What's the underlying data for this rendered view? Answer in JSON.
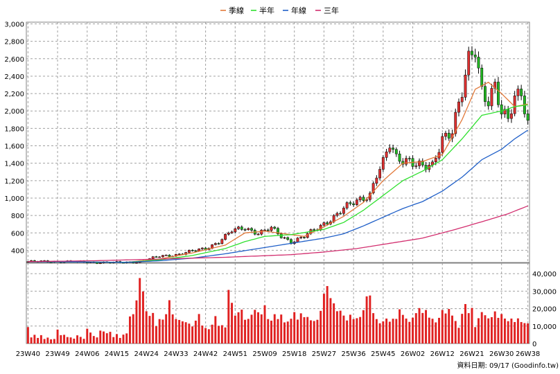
{
  "chart_data": {
    "type": "candlestick",
    "period": "weekly",
    "legend": [
      {
        "label": "季線",
        "color": "#e2793a"
      },
      {
        "label": "半年",
        "color": "#2ee02e"
      },
      {
        "label": "年線",
        "color": "#1f5fc8"
      },
      {
        "label": "三年",
        "color": "#d22d6e"
      }
    ],
    "legend_position": "top-center",
    "grid": true,
    "colors": {
      "up": "#e03030",
      "down": "#22b822",
      "volume": "#e02020"
    },
    "price_axis": {
      "ticks": [
        400,
        600,
        800,
        1000,
        1200,
        1400,
        1600,
        1800,
        2000,
        2200,
        2400,
        2600,
        2800,
        3000
      ],
      "tick_labels": [
        "400",
        "600",
        "800",
        "1,000",
        "1,200",
        "1,400",
        "1,600",
        "1,800",
        "2,000",
        "2,200",
        "2,400",
        "2,600",
        "2,800",
        "3,000"
      ],
      "ylim": [
        260,
        3020
      ]
    },
    "volume_axis": {
      "ticks": [
        0,
        10000,
        20000,
        30000,
        40000
      ],
      "tick_labels": [
        "0",
        "10,000",
        "20,000",
        "30,000",
        "40,000"
      ],
      "ylim": [
        0,
        46000
      ],
      "position": "right"
    },
    "x_tick_labels": [
      "23W40",
      "23W49",
      "24W06",
      "24W15",
      "24W24",
      "24W33",
      "24W42",
      "24W51",
      "25W09",
      "25W18",
      "25W27",
      "25W36",
      "25W45",
      "26W02",
      "26W12",
      "26W21",
      "26W30",
      "26W38"
    ],
    "x_tick_positions": [
      0,
      9,
      18,
      27,
      36,
      45,
      54,
      63,
      72,
      81,
      90,
      99,
      108,
      117,
      126,
      135,
      144,
      152
    ],
    "footer": "資料日期: 09/17  (Goodinfo.tw)",
    "weeks": 153,
    "price_anchors": [
      [
        0,
        270
      ],
      [
        10,
        272
      ],
      [
        20,
        262
      ],
      [
        27,
        258
      ],
      [
        30,
        262
      ],
      [
        34,
        270
      ],
      [
        36,
        290
      ],
      [
        40,
        330
      ],
      [
        45,
        350
      ],
      [
        50,
        390
      ],
      [
        54,
        420
      ],
      [
        58,
        500
      ],
      [
        62,
        620
      ],
      [
        66,
        660
      ],
      [
        70,
        600
      ],
      [
        74,
        650
      ],
      [
        77,
        560
      ],
      [
        80,
        500
      ],
      [
        84,
        560
      ],
      [
        88,
        650
      ],
      [
        92,
        760
      ],
      [
        96,
        880
      ],
      [
        100,
        960
      ],
      [
        104,
        1050
      ],
      [
        106,
        1280
      ],
      [
        108,
        1400
      ],
      [
        110,
        1600
      ],
      [
        112,
        1450
      ],
      [
        116,
        1450
      ],
      [
        120,
        1350
      ],
      [
        123,
        1350
      ],
      [
        126,
        1700
      ],
      [
        129,
        1800
      ],
      [
        132,
        2200
      ],
      [
        134,
        2550
      ],
      [
        136,
        2700
      ],
      [
        138,
        2250
      ],
      [
        140,
        2150
      ],
      [
        142,
        2300
      ],
      [
        144,
        1950
      ],
      [
        146,
        1880
      ],
      [
        148,
        2150
      ],
      [
        150,
        2250
      ],
      [
        152,
        1880
      ]
    ],
    "ma_anchors": {
      "season": [
        [
          0,
          270
        ],
        [
          30,
          262
        ],
        [
          40,
          300
        ],
        [
          50,
          370
        ],
        [
          60,
          460
        ],
        [
          66,
          600
        ],
        [
          72,
          620
        ],
        [
          78,
          590
        ],
        [
          84,
          560
        ],
        [
          90,
          670
        ],
        [
          96,
          790
        ],
        [
          102,
          950
        ],
        [
          108,
          1200
        ],
        [
          114,
          1400
        ],
        [
          120,
          1420
        ],
        [
          126,
          1500
        ],
        [
          132,
          1900
        ],
        [
          136,
          2250
        ],
        [
          140,
          2330
        ],
        [
          144,
          2200
        ],
        [
          148,
          2050
        ],
        [
          152,
          2080
        ]
      ],
      "half_year": [
        [
          0,
          270
        ],
        [
          30,
          262
        ],
        [
          40,
          290
        ],
        [
          50,
          340
        ],
        [
          60,
          420
        ],
        [
          66,
          500
        ],
        [
          72,
          560
        ],
        [
          80,
          580
        ],
        [
          90,
          640
        ],
        [
          96,
          720
        ],
        [
          102,
          860
        ],
        [
          108,
          1030
        ],
        [
          114,
          1200
        ],
        [
          120,
          1310
        ],
        [
          126,
          1440
        ],
        [
          132,
          1680
        ],
        [
          138,
          1950
        ],
        [
          144,
          2000
        ],
        [
          148,
          2050
        ],
        [
          152,
          2070
        ]
      ],
      "year": [
        [
          0,
          270
        ],
        [
          30,
          262
        ],
        [
          40,
          280
        ],
        [
          50,
          310
        ],
        [
          60,
          360
        ],
        [
          70,
          420
        ],
        [
          80,
          480
        ],
        [
          90,
          540
        ],
        [
          96,
          590
        ],
        [
          102,
          680
        ],
        [
          108,
          780
        ],
        [
          114,
          880
        ],
        [
          120,
          960
        ],
        [
          126,
          1080
        ],
        [
          132,
          1240
        ],
        [
          138,
          1440
        ],
        [
          144,
          1560
        ],
        [
          148,
          1680
        ],
        [
          152,
          1780
        ]
      ],
      "three_year": [
        [
          0,
          270
        ],
        [
          20,
          280
        ],
        [
          40,
          300
        ],
        [
          60,
          320
        ],
        [
          80,
          350
        ],
        [
          90,
          380
        ],
        [
          100,
          420
        ],
        [
          110,
          480
        ],
        [
          120,
          540
        ],
        [
          130,
          640
        ],
        [
          140,
          750
        ],
        [
          146,
          820
        ],
        [
          152,
          910
        ]
      ]
    },
    "volume": [
      9400,
      3500,
      5000,
      3200,
      4800,
      2600,
      3400,
      2400,
      2600,
      8000,
      4800,
      5000,
      3700,
      3500,
      2800,
      4700,
      3800,
      2700,
      8500,
      6300,
      4300,
      3500,
      7400,
      6900,
      5900,
      6700,
      3700,
      5400,
      3200,
      5100,
      5800,
      15500,
      16800,
      24700,
      37500,
      29800,
      18500,
      15800,
      17500,
      9900,
      14000,
      13700,
      16800,
      24800,
      16700,
      14000,
      13500,
      12700,
      12200,
      11400,
      9800,
      13100,
      16900,
      10300,
      8900,
      8200,
      10800,
      15700,
      10100,
      10500,
      9200,
      30700,
      23300,
      16000,
      17900,
      19400,
      13600,
      14100,
      16500,
      19300,
      17900,
      16700,
      21900,
      14000,
      13100,
      16800,
      14000,
      16600,
      12100,
      12600,
      14200,
      18000,
      13700,
      17300,
      15100,
      15200,
      13300,
      12900,
      13600,
      18700,
      28500,
      32900,
      26000,
      23000,
      18500,
      18800,
      16000,
      13200,
      16500,
      14000,
      14500,
      15200,
      19100,
      27000,
      27500,
      17400,
      14000,
      11600,
      12700,
      14300,
      12500,
      14200,
      14100,
      19600,
      16400,
      14300,
      12400,
      14800,
      17400,
      20300,
      17500,
      19200,
      14800,
      14200,
      12100,
      14700,
      19200,
      17200,
      19800,
      16000,
      12900,
      9000,
      17000,
      22600,
      17400,
      20400,
      9400,
      14500,
      18000,
      16200,
      14400,
      15100,
      18400,
      14700,
      16900,
      14300,
      12800,
      14300,
      12300,
      14400,
      12300,
      11700,
      11500
    ]
  }
}
